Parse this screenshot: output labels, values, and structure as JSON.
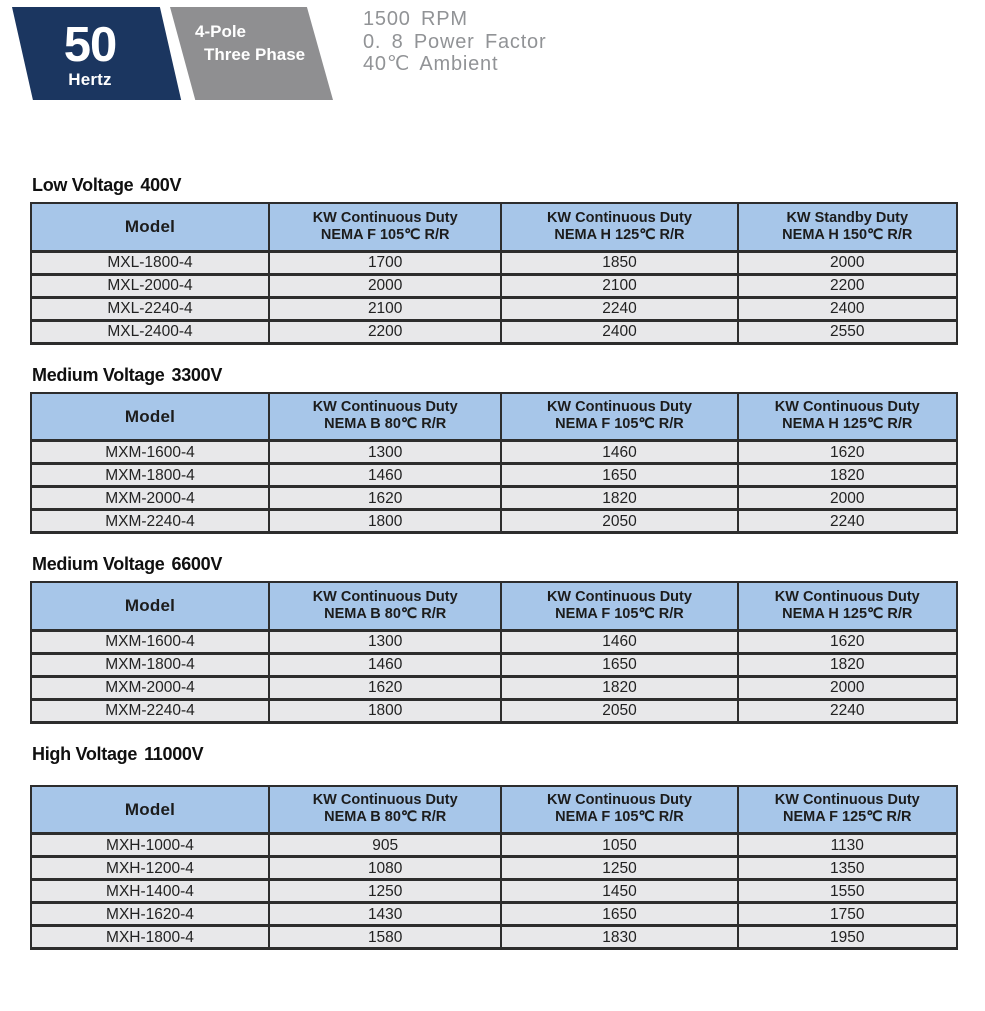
{
  "banner": {
    "frequency": "50",
    "frequency_unit": "Hertz",
    "pole": "4-Pole",
    "phase": "Three Phase",
    "conditions": [
      "1500 RPM",
      "0. 8  Power  Factor",
      "40℃ Ambient"
    ]
  },
  "tables": [
    {
      "title": "Low Voltage",
      "voltage": "400V",
      "columns": [
        {
          "label": "Model",
          "sub": ""
        },
        {
          "label": "KW Continuous Duty",
          "sub": "NEMA F  105℃ R/R"
        },
        {
          "label": "KW Continuous Duty",
          "sub": "NEMA H  125℃ R/R"
        },
        {
          "label": "KW Standby Duty",
          "sub": "NEMA H  150℃ R/R"
        }
      ],
      "rows": [
        [
          "MXL-1800-4",
          "1700",
          "1850",
          "2000"
        ],
        [
          "MXL-2000-4",
          "2000",
          "2100",
          "2200"
        ],
        [
          "MXL-2240-4",
          "2100",
          "2240",
          "2400"
        ],
        [
          "MXL-2400-4",
          "2200",
          "2400",
          "2550"
        ]
      ]
    },
    {
      "title": "Medium Voltage",
      "voltage": "3300V",
      "columns": [
        {
          "label": "Model",
          "sub": ""
        },
        {
          "label": "KW Continuous Duty",
          "sub": "NEMA B  80℃ R/R"
        },
        {
          "label": "KW Continuous Duty",
          "sub": "NEMA F  105℃ R/R"
        },
        {
          "label": "KW Continuous Duty",
          "sub": "NEMA H  125℃ R/R"
        }
      ],
      "rows": [
        [
          "MXM-1600-4",
          "1300",
          "1460",
          "1620"
        ],
        [
          "MXM-1800-4",
          "1460",
          "1650",
          "1820"
        ],
        [
          "MXM-2000-4",
          "1620",
          "1820",
          "2000"
        ],
        [
          "MXM-2240-4",
          "1800",
          "2050",
          "2240"
        ]
      ]
    },
    {
      "title": "Medium Voltage",
      "voltage": "6600V",
      "columns": [
        {
          "label": "Model",
          "sub": ""
        },
        {
          "label": "KW Continuous Duty",
          "sub": "NEMA B  80℃ R/R"
        },
        {
          "label": "KW Continuous Duty",
          "sub": "NEMA F  105℃ R/R"
        },
        {
          "label": "KW Continuous Duty",
          "sub": "NEMA H  125℃ R/R"
        }
      ],
      "rows": [
        [
          "MXM-1600-4",
          "1300",
          "1460",
          "1620"
        ],
        [
          "MXM-1800-4",
          "1460",
          "1650",
          "1820"
        ],
        [
          "MXM-2000-4",
          "1620",
          "1820",
          "2000"
        ],
        [
          "MXM-2240-4",
          "1800",
          "2050",
          "2240"
        ]
      ]
    },
    {
      "title": "High Voltage",
      "voltage": "11000V",
      "columns": [
        {
          "label": "Model",
          "sub": ""
        },
        {
          "label": "KW Continuous Duty",
          "sub": "NEMA B  80℃ R/R"
        },
        {
          "label": "KW Continuous Duty",
          "sub": "NEMA F  105℃ R/R"
        },
        {
          "label": "KW Continuous Duty",
          "sub": "NEMA F 125℃ R/R"
        }
      ],
      "rows": [
        [
          "MXH-1000-4",
          "905",
          "1050",
          "1130"
        ],
        [
          "MXH-1200-4",
          "1080",
          "1250",
          "1350"
        ],
        [
          "MXH-1400-4",
          "1250",
          "1450",
          "1550"
        ],
        [
          "MXH-1620-4",
          "1430",
          "1650",
          "1750"
        ],
        [
          "MXH-1800-4",
          "1580",
          "1830",
          "1950"
        ]
      ]
    }
  ],
  "theme": {
    "navy": "#1b3660",
    "badge_gray": "#8f8f91",
    "conditions_text": "#919396",
    "header_blue": "#a7c6e9",
    "row_bg": "#e8e8ea",
    "border": "#2d2d2d"
  },
  "layout_hints": {
    "column_widths": [
      "25.7%",
      "25.1%",
      "25.5%",
      "23.7%"
    ]
  }
}
